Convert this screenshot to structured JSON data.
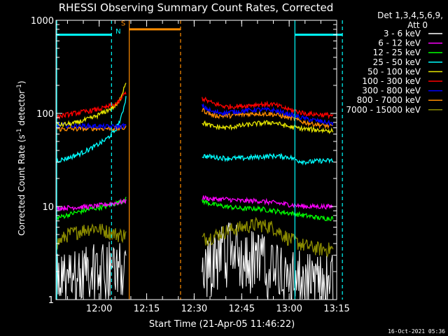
{
  "chart_data": {
    "type": "line",
    "title": "RHESSI Observing Summary Count Rates, Corrected",
    "xlabel": "Start Time (21-Apr-05 11:46:22)",
    "ylabel_pre": "Corrected Count Rate (s",
    "ylabel_sup1": "-1",
    "ylabel_mid": " detector",
    "ylabel_sup2": "-1",
    "ylabel_post": ")",
    "x_unit": "minutes of day",
    "xlim": [
      706.37,
      795
    ],
    "ylim": [
      1,
      1000
    ],
    "yscale": "log",
    "x_ticks": [
      {
        "v": 720,
        "label": "12:00"
      },
      {
        "v": 735,
        "label": "12:15"
      },
      {
        "v": 750,
        "label": "12:30"
      },
      {
        "v": 765,
        "label": "12:45"
      },
      {
        "v": 780,
        "label": "13:00"
      },
      {
        "v": 795,
        "label": "13:15"
      }
    ],
    "y_ticks": [
      {
        "v": 1,
        "label": "1"
      },
      {
        "v": 10,
        "label": "10"
      },
      {
        "v": 100,
        "label": "100"
      },
      {
        "v": 1000,
        "label": "1000"
      }
    ],
    "legend": {
      "header1": "Det 1,3,4,5,6,9,",
      "header2": "Att 0",
      "placement": "right",
      "entries": [
        {
          "label": "3 - 6 keV",
          "color": "#ffffff"
        },
        {
          "label": "6 - 12 keV",
          "color": "#ff00ff"
        },
        {
          "label": "12 - 25 keV",
          "color": "#00ff00"
        },
        {
          "label": "25 - 50 keV",
          "color": "#00ffff"
        },
        {
          "label": "50 - 100 keV",
          "color": "#e6e600"
        },
        {
          "label": "100 - 300 keV",
          "color": "#ff0000"
        },
        {
          "label": "300 - 800 keV",
          "color": "#0000ff"
        },
        {
          "label": "800 - 7000 keV",
          "color": "#ff8c00"
        },
        {
          "label": "7000 - 15000 keV",
          "color": "#8b8b00"
        }
      ]
    },
    "series": [
      {
        "color": "#ff0000",
        "segments": [
          {
            "x": [
              706.6,
              712,
              718,
              722,
              726,
              728.5
            ],
            "y": [
              92,
              100,
              108,
              115,
              130,
              170
            ]
          },
          {
            "x": [
              752.5,
              756,
              760,
              765,
              770,
              775,
              780,
              785,
              790,
              794
            ],
            "y": [
              145,
              128,
              118,
              120,
              125,
              125,
              110,
              100,
              97,
              95
            ]
          }
        ]
      },
      {
        "color": "#e6e600",
        "segments": [
          {
            "x": [
              706.6,
              712,
              718,
              722,
              726,
              728.5
            ],
            "y": [
              75,
              78,
              90,
              105,
              125,
              220
            ]
          },
          {
            "x": [
              752.5,
              756,
              760,
              765,
              770,
              775,
              780,
              785,
              790,
              794
            ],
            "y": [
              80,
              72,
              70,
              74,
              78,
              80,
              72,
              68,
              66,
              65
            ]
          }
        ]
      },
      {
        "color": "#0000ff",
        "segments": [
          {
            "x": [
              706.6,
              712,
              718,
              722,
              726,
              728.5
            ],
            "y": [
              75,
              74,
              73,
              72,
              72,
              74
            ]
          },
          {
            "x": [
              752.5,
              756,
              760,
              765,
              770,
              775,
              780,
              785,
              790,
              794
            ],
            "y": [
              120,
              103,
              102,
              106,
              110,
              108,
              98,
              88,
              82,
              78
            ]
          }
        ]
      },
      {
        "color": "#ff8c00",
        "segments": [
          {
            "x": [
              706.6,
              712,
              718,
              722,
              726,
              728.5
            ],
            "y": [
              68,
              68,
              69,
              69,
              69,
              70
            ]
          },
          {
            "x": [
              752.5,
              756,
              760,
              765,
              770,
              775,
              780,
              785,
              790,
              794
            ],
            "y": [
              110,
              95,
              94,
              97,
              100,
              98,
              90,
              80,
              75,
              72
            ]
          }
        ]
      },
      {
        "color": "#00ffff",
        "segments": [
          {
            "x": [
              706.6,
              710,
              714,
              718,
              722,
              725,
              727,
              728.5
            ],
            "y": [
              31,
              33,
              37,
              43,
              52,
              65,
              90,
              150
            ]
          },
          {
            "x": [
              752.5,
              756,
              760,
              765,
              770,
              775,
              780,
              783,
              786,
              790,
              794
            ],
            "y": [
              35,
              34,
              33,
              33,
              34,
              35,
              34,
              31,
              30,
              31,
              31
            ]
          }
        ]
      },
      {
        "color": "#ff00ff",
        "segments": [
          {
            "x": [
              706.6,
              712,
              718,
              722,
              726,
              728.5
            ],
            "y": [
              9.6,
              9.8,
              10,
              10.5,
              11,
              11.5
            ]
          },
          {
            "x": [
              752.5,
              756,
              760,
              765,
              770,
              775,
              780,
              785,
              790,
              794
            ],
            "y": [
              12.5,
              12,
              12,
              11.5,
              11.5,
              11,
              10.5,
              10,
              10,
              10
            ]
          }
        ]
      },
      {
        "color": "#00ff00",
        "segments": [
          {
            "x": [
              706.6,
              712,
              718,
              722,
              726,
              728.5
            ],
            "y": [
              7.5,
              8.5,
              9.5,
              10,
              11,
              12
            ]
          },
          {
            "x": [
              752.5,
              756,
              760,
              765,
              770,
              775,
              780,
              785,
              790,
              794
            ],
            "y": [
              11.5,
              10.5,
              10,
              9.5,
              9.5,
              9,
              8.5,
              8,
              7.5,
              7.5
            ]
          }
        ]
      },
      {
        "color": "#8b8b00",
        "segments": [
          {
            "x": [
              706.6,
              710,
              714,
              718,
              722,
              726,
              728.5
            ],
            "y": [
              4,
              5,
              5.5,
              6,
              5.5,
              5,
              5
            ]
          },
          {
            "x": [
              752.5,
              756,
              760,
              765,
              770,
              775,
              780,
              785,
              790,
              794
            ],
            "y": [
              4.5,
              4.8,
              5.5,
              6,
              6.5,
              6,
              4.5,
              3.8,
              3.5,
              3.5
            ]
          }
        ]
      },
      {
        "color": "#ffffff",
        "segments": [
          {
            "x": [
              706.6,
              712,
              718,
              722,
              726,
              728.5
            ],
            "y": [
              2,
              2.2,
              2.5,
              3,
              2.8,
              2.5
            ]
          },
          {
            "x": [
              752.5,
              756,
              760,
              765,
              770,
              775,
              780,
              785,
              790,
              794
            ],
            "y": [
              2.5,
              3.5,
              4.5,
              4,
              3.5,
              3,
              2.5,
              2,
              2,
              2
            ]
          }
        ]
      }
    ],
    "annotations": [
      {
        "type": "vline",
        "x": 706.6,
        "style": "solid",
        "color": "#00ffff"
      },
      {
        "type": "vline",
        "x": 723.9,
        "style": "dashed",
        "color": "#00ffff"
      },
      {
        "type": "vline",
        "x": 729.5,
        "style": "solid",
        "color": "#ff8c00"
      },
      {
        "type": "vline",
        "x": 745.7,
        "style": "dashed",
        "color": "#ff8c00"
      },
      {
        "type": "vline",
        "x": 781.8,
        "style": "solid",
        "color": "#00ffff"
      },
      {
        "type": "vline",
        "x": 796.8,
        "style": "dashed",
        "color": "#00ffff"
      },
      {
        "type": "hbar",
        "x0": 706.6,
        "x1": 723.9,
        "y": 700,
        "color": "#00ffff"
      },
      {
        "type": "hbar",
        "x0": 729.5,
        "x1": 745.7,
        "y": 800,
        "color": "#ff8c00"
      },
      {
        "type": "hbar",
        "x0": 781.8,
        "x1": 796.8,
        "y": 700,
        "color": "#00ffff"
      },
      {
        "type": "label",
        "x": 726.0,
        "y": 720,
        "text": "N",
        "color": "#00ffff"
      },
      {
        "type": "label",
        "x": 727.6,
        "y": 880,
        "text": "S",
        "color": "#ff8c00"
      }
    ]
  },
  "footer": {
    "timestamp": "16-Oct-2021 05:36"
  }
}
